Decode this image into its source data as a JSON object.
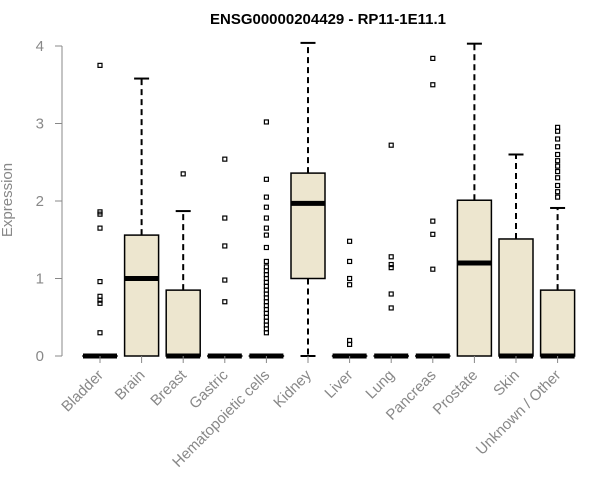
{
  "chart_data": {
    "type": "boxplot",
    "title": "ENSG00000204429 - RP11-1E11.1",
    "ylabel": "Expression",
    "xlabel": "",
    "ylim": [
      0,
      4.2
    ],
    "yticks": [
      0,
      1,
      2,
      3,
      4
    ],
    "box_fill": "#EDE6CF",
    "categories": [
      "Bladder",
      "Brain",
      "Breast",
      "Gastric",
      "Hematopoietic cells",
      "Kidney",
      "Liver",
      "Lung",
      "Pancreas",
      "Prostate",
      "Skin",
      "Unknown / Other"
    ],
    "boxes": [
      {
        "q1": 0,
        "median": 0,
        "q3": 0,
        "whisker_low": 0,
        "whisker_high": 0,
        "outliers": [
          3.75,
          1.86,
          1.83,
          1.65,
          0.96,
          0.77,
          0.72,
          0.68,
          0.3
        ]
      },
      {
        "q1": 0,
        "median": 1.0,
        "q3": 1.56,
        "whisker_low": 0,
        "whisker_high": 3.58,
        "outliers": []
      },
      {
        "q1": 0,
        "median": 0,
        "q3": 0.85,
        "whisker_low": 0,
        "whisker_high": 1.87,
        "outliers": [
          2.35
        ]
      },
      {
        "q1": 0,
        "median": 0,
        "q3": 0,
        "whisker_low": 0,
        "whisker_high": 0,
        "outliers": [
          2.54,
          1.78,
          1.42,
          0.98,
          0.7
        ]
      },
      {
        "q1": 0,
        "median": 0,
        "q3": 0,
        "whisker_low": 0,
        "whisker_high": 0,
        "outliers": [
          3.02,
          2.28,
          2.05,
          1.92,
          1.78,
          1.65,
          1.56,
          1.4,
          1.22,
          1.15,
          1.1,
          1.05,
          1.0,
          0.95,
          0.9,
          0.85,
          0.8,
          0.75,
          0.7,
          0.65,
          0.6,
          0.55,
          0.5,
          0.45,
          0.4,
          0.35,
          0.3
        ]
      },
      {
        "q1": 1.0,
        "median": 1.97,
        "q3": 2.36,
        "whisker_low": 0,
        "whisker_high": 4.04,
        "outliers": []
      },
      {
        "q1": 0,
        "median": 0,
        "q3": 0,
        "whisker_low": 0,
        "whisker_high": 0,
        "outliers": [
          1.48,
          1.22,
          1.0,
          0.92,
          0.2,
          0.15
        ]
      },
      {
        "q1": 0,
        "median": 0,
        "q3": 0,
        "whisker_low": 0,
        "whisker_high": 0,
        "outliers": [
          2.72,
          1.28,
          1.18,
          1.14,
          0.8,
          0.62
        ]
      },
      {
        "q1": 0,
        "median": 0,
        "q3": 0,
        "whisker_low": 0,
        "whisker_high": 0,
        "outliers": [
          3.84,
          3.5,
          1.74,
          1.57,
          1.12
        ]
      },
      {
        "q1": 0,
        "median": 1.2,
        "q3": 2.01,
        "whisker_low": 0,
        "whisker_high": 4.03,
        "outliers": []
      },
      {
        "q1": 0,
        "median": 0,
        "q3": 1.51,
        "whisker_low": 0,
        "whisker_high": 2.6,
        "outliers": []
      },
      {
        "q1": 0,
        "median": 0,
        "q3": 0.85,
        "whisker_low": 0,
        "whisker_high": 1.91,
        "outliers": [
          2.95,
          2.9,
          2.8,
          2.7,
          2.6,
          2.52,
          2.45,
          2.38,
          2.3,
          2.2,
          2.12,
          2.05
        ]
      }
    ]
  }
}
